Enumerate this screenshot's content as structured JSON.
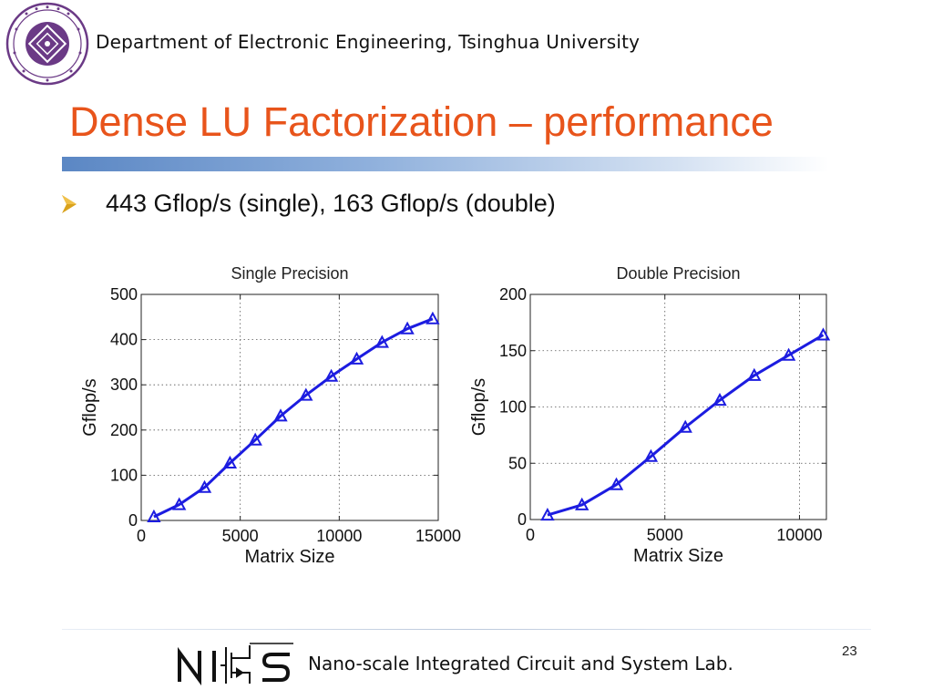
{
  "header": {
    "department": "Department of Electronic Engineering, Tsinghua University"
  },
  "title": "Dense LU Factorization – performance",
  "bullets": [
    {
      "text": "443 Gflop/s (single), 163 Gflop/s (double)"
    }
  ],
  "footer": {
    "lab": "Nano-scale Integrated Circuit and System Lab.",
    "page": "23"
  },
  "colors": {
    "title": "#e8541b",
    "series": "#1c1ce0",
    "bullet": "#d9a21c"
  },
  "chart_data": [
    {
      "type": "line",
      "title": "Single Precision",
      "xlabel": "Matrix Size",
      "ylabel": "Gflop/s",
      "xlim": [
        0,
        15000
      ],
      "ylim": [
        0,
        500
      ],
      "xticks": [
        0,
        5000,
        10000,
        15000
      ],
      "yticks": [
        0,
        100,
        200,
        300,
        400,
        500
      ],
      "grid": true,
      "marker": "triangle",
      "series": [
        {
          "name": "Single Precision",
          "x": [
            640,
            1920,
            3200,
            4480,
            5760,
            7040,
            8320,
            9600,
            10880,
            12160,
            13440,
            14720
          ],
          "y": [
            8,
            35,
            73,
            127,
            178,
            231,
            277,
            319,
            357,
            394,
            424,
            446
          ]
        }
      ]
    },
    {
      "type": "line",
      "title": "Double Precision",
      "xlabel": "Matrix Size",
      "ylabel": "Gflop/s",
      "xlim": [
        0,
        11000
      ],
      "ylim": [
        0,
        200
      ],
      "xticks": [
        0,
        5000,
        10000
      ],
      "yticks": [
        0,
        50,
        100,
        150,
        200
      ],
      "grid": true,
      "marker": "triangle",
      "series": [
        {
          "name": "Double Precision",
          "x": [
            640,
            1920,
            3200,
            4480,
            5760,
            7040,
            8320,
            9600,
            10880
          ],
          "y": [
            4,
            13,
            31,
            56,
            82,
            106,
            128,
            146,
            164
          ]
        }
      ]
    }
  ]
}
